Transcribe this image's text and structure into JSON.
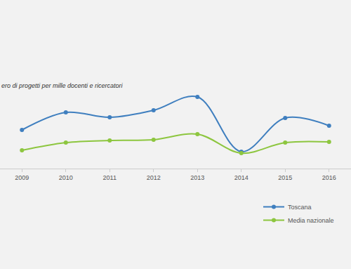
{
  "chart_data": {
    "type": "line",
    "title": "ero di progetti per mille docenti e ricercatori",
    "x": [
      2009,
      2010,
      2011,
      2012,
      2013,
      2014,
      2015,
      2016
    ],
    "series": [
      {
        "name": "Toscana",
        "color": "#3f7fbf",
        "values": [
          5.5,
          8.0,
          7.3,
          8.3,
          10.2,
          2.4,
          7.2,
          6.1
        ]
      },
      {
        "name": "Media nazionale",
        "color": "#8dc63f",
        "values": [
          2.6,
          3.7,
          4.0,
          4.1,
          4.9,
          2.2,
          3.7,
          3.8
        ]
      }
    ],
    "xlim": [
      2008.5,
      2016.5
    ],
    "xticks": [
      2009,
      2010,
      2011,
      2012,
      2013,
      2014,
      2015,
      2016
    ],
    "ylim": [
      0,
      20
    ],
    "tick_labels": "x",
    "grid": false,
    "legend": "bottom right",
    "marker": "circle"
  }
}
